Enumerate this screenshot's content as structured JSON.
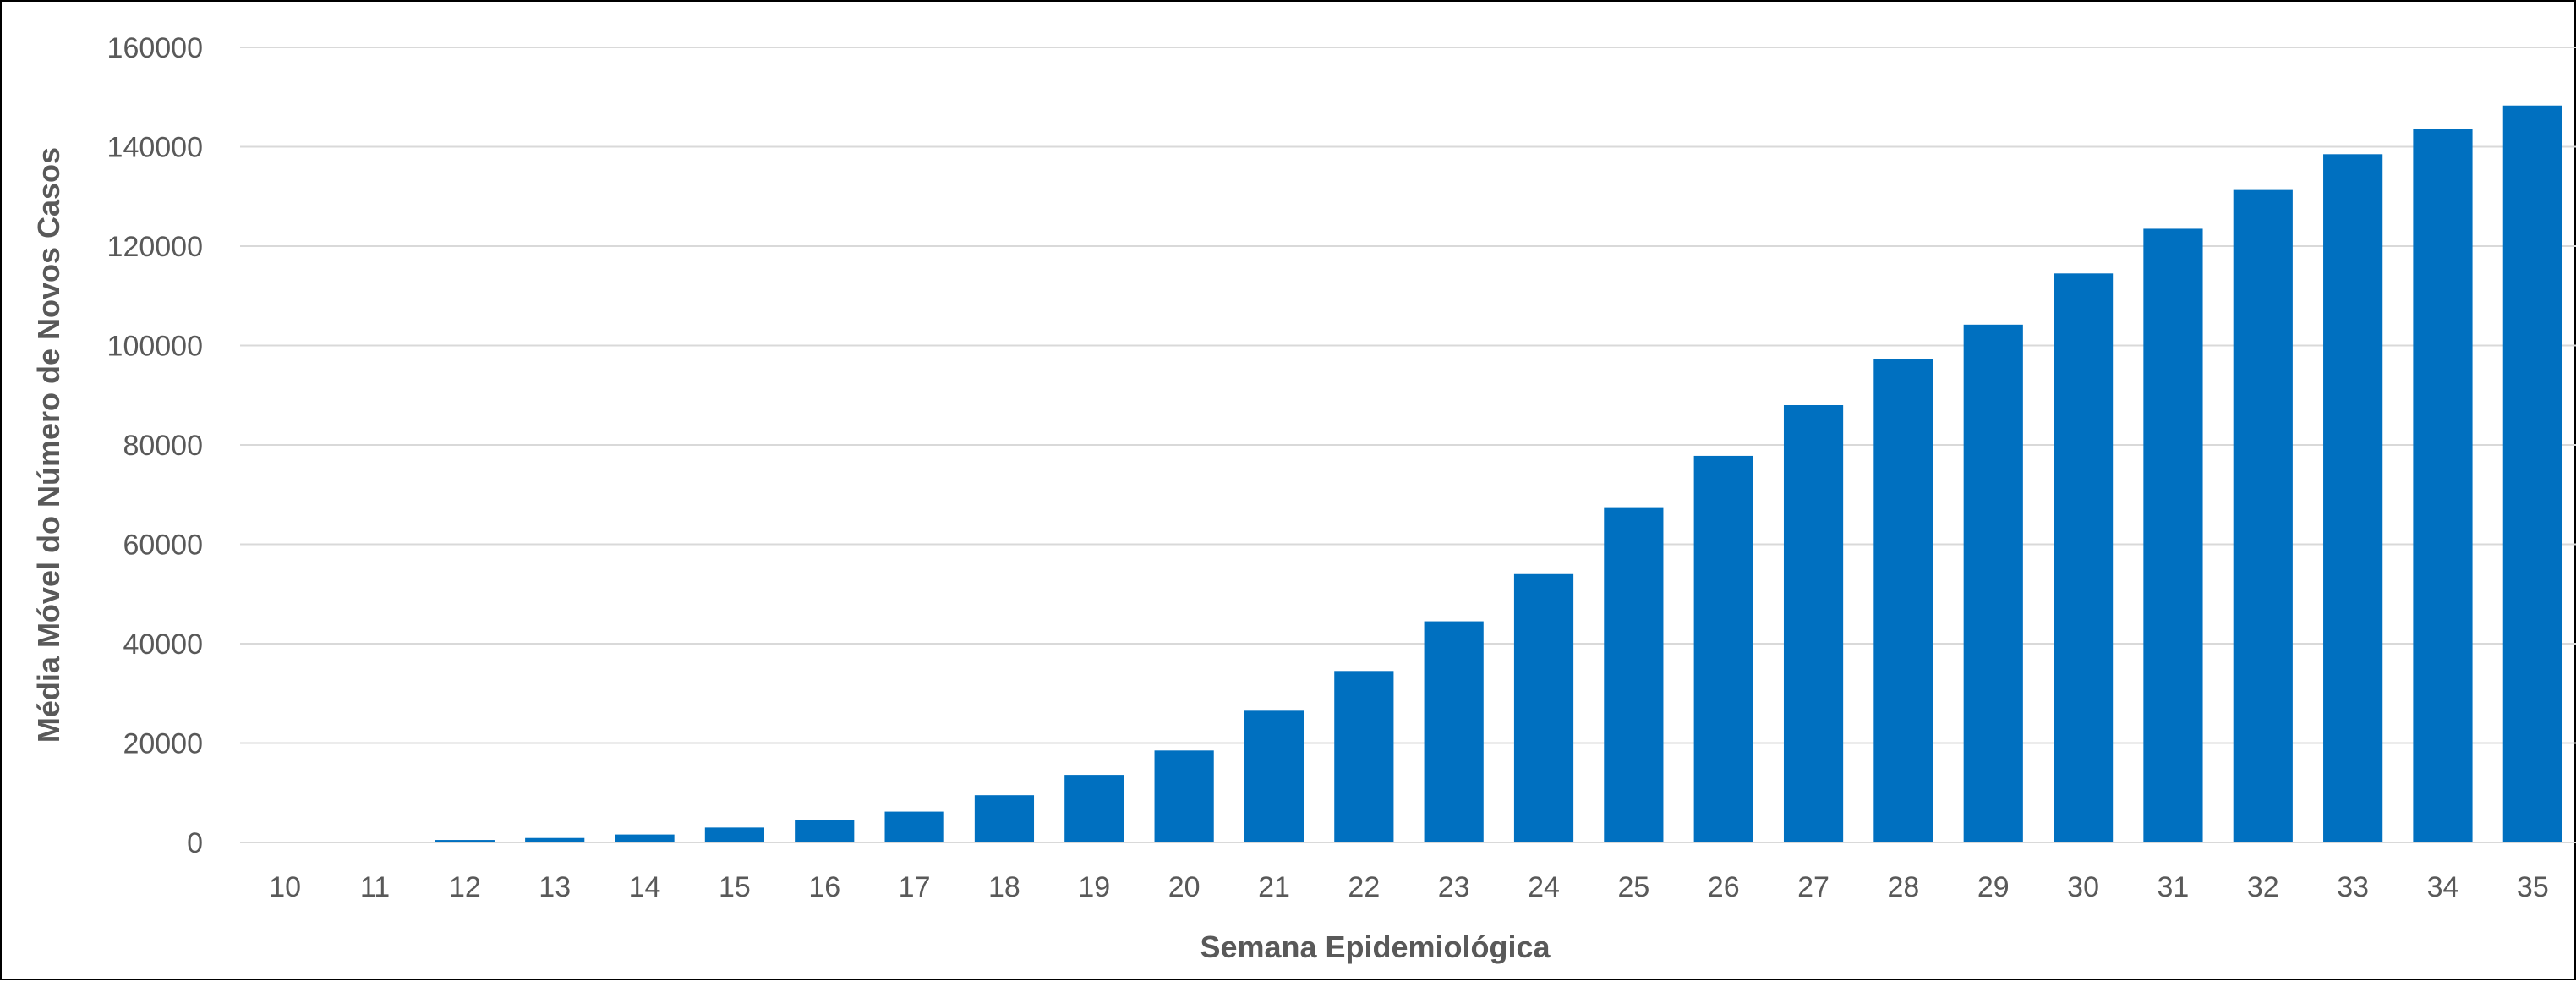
{
  "chart_data": {
    "type": "bar",
    "xlabel": "Semana Epidemiológica",
    "ylabel": "Média Móvel do Número de Novos Casos",
    "categories": [
      "10",
      "11",
      "12",
      "13",
      "14",
      "15",
      "16",
      "17",
      "18",
      "19",
      "20",
      "21",
      "22",
      "23",
      "24",
      "25",
      "26",
      "27",
      "28",
      "29",
      "30",
      "31",
      "32",
      "33",
      "34",
      "35"
    ],
    "values": [
      20,
      100,
      500,
      900,
      1600,
      3000,
      4500,
      6200,
      9500,
      13600,
      18500,
      26500,
      34500,
      44500,
      54000,
      67300,
      77800,
      88000,
      97300,
      104200,
      114500,
      123500,
      131300,
      138500,
      143500,
      148300
    ],
    "ylim": [
      0,
      160000
    ],
    "yticks": [
      0,
      20000,
      40000,
      60000,
      80000,
      100000,
      120000,
      140000,
      160000
    ],
    "ytick_labels": [
      "0",
      "20000",
      "40000",
      "60000",
      "80000",
      "100000",
      "120000",
      "140000",
      "160000"
    ],
    "grid": true,
    "legend": "none",
    "bar_color": "#0070c0"
  }
}
